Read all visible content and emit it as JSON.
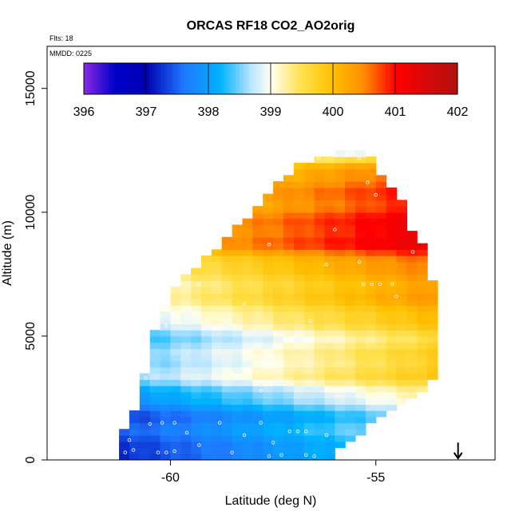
{
  "chart_data": {
    "type": "heatmap",
    "title": "ORCAS RF18 CO2_AO2orig",
    "corner_labels": [
      "Flts: 18",
      "MMDD: 0225"
    ],
    "xlabel": "Latitude (deg N)",
    "ylabel": "Altitude (m)",
    "xlim": [
      -63,
      -52.1
    ],
    "ylim": [
      0,
      16700
    ],
    "x_ticks": [
      -60,
      -55
    ],
    "x_tick_labels": [
      "-60",
      "-55"
    ],
    "y_ticks": [
      0,
      5000,
      10000,
      15000
    ],
    "y_tick_labels": [
      "0",
      "5000",
      "10000",
      "15000"
    ],
    "colorbar": {
      "min": 396,
      "max": 402,
      "ticks": [
        396,
        397,
        398,
        399,
        400,
        401,
        402
      ],
      "tick_labels": [
        "396",
        "397",
        "398",
        "399",
        "400",
        "401",
        "402"
      ],
      "color_stops": [
        {
          "v": 396.0,
          "c": "#8a2be2"
        },
        {
          "v": 396.5,
          "c": "#0000c8"
        },
        {
          "v": 397.0,
          "c": "#0000b0"
        },
        {
          "v": 397.6,
          "c": "#1e78ff"
        },
        {
          "v": 398.2,
          "c": "#00b4ff"
        },
        {
          "v": 398.7,
          "c": "#bfe6ff"
        },
        {
          "v": 399.0,
          "c": "#fffff0"
        },
        {
          "v": 399.5,
          "c": "#ffe14d"
        },
        {
          "v": 400.0,
          "c": "#ffc000"
        },
        {
          "v": 400.5,
          "c": "#ff8c00"
        },
        {
          "v": 401.0,
          "c": "#ff0000"
        },
        {
          "v": 402.0,
          "c": "#b01010"
        }
      ]
    },
    "grid_cell": {
      "dlat": 0.25,
      "dalt": 250
    },
    "envelope": [
      {
        "alt": 0,
        "lat_min": -61.2,
        "lat_max": -56.3
      },
      {
        "alt": 1000,
        "lat_min": -61.2,
        "lat_max": -55.5
      },
      {
        "alt": 1800,
        "lat_min": -60.9,
        "lat_max": -55.0
      },
      {
        "alt": 2800,
        "lat_min": -60.8,
        "lat_max": -54.0
      },
      {
        "alt": 3500,
        "lat_min": -60.6,
        "lat_max": -53.6
      },
      {
        "alt": 4500,
        "lat_min": -60.5,
        "lat_max": -53.6
      },
      {
        "alt": 5500,
        "lat_min": -60.3,
        "lat_max": -53.6
      },
      {
        "alt": 6700,
        "lat_min": -60.0,
        "lat_max": -53.5
      },
      {
        "alt": 7500,
        "lat_min": -59.6,
        "lat_max": -53.9
      },
      {
        "alt": 8500,
        "lat_min": -58.9,
        "lat_max": -53.9
      },
      {
        "alt": 9500,
        "lat_min": -58.3,
        "lat_max": -54.4
      },
      {
        "alt": 10500,
        "lat_min": -57.8,
        "lat_max": -54.5
      },
      {
        "alt": 11500,
        "lat_min": -57.2,
        "lat_max": -55.0
      },
      {
        "alt": 12000,
        "lat_min": -56.8,
        "lat_max": -55.0
      },
      {
        "alt": 12400,
        "lat_min": -56.0,
        "lat_max": -55.3
      }
    ],
    "profile": [
      {
        "alt": 0,
        "value": 397.6
      },
      {
        "alt": 1000,
        "value": 397.7
      },
      {
        "alt": 2000,
        "value": 398.1
      },
      {
        "alt": 2500,
        "value": 398.5
      },
      {
        "alt": 3500,
        "value": 398.8
      },
      {
        "alt": 4500,
        "value": 398.95
      },
      {
        "alt": 5500,
        "value": 399.05
      },
      {
        "alt": 6500,
        "value": 399.3
      },
      {
        "alt": 7000,
        "value": 399.6
      },
      {
        "alt": 8000,
        "value": 399.9
      },
      {
        "alt": 8700,
        "value": 400.25
      },
      {
        "alt": 9500,
        "value": 400.4
      },
      {
        "alt": 10300,
        "value": 400.4
      },
      {
        "alt": 11000,
        "value": 400.1
      },
      {
        "alt": 11800,
        "value": 399.6
      },
      {
        "alt": 12400,
        "value": 398.5
      }
    ],
    "lat_gradient_per_deg": 0.18,
    "lat_gradient_ref": -58.5,
    "sample_points": [
      {
        "lat": -61.1,
        "alt": 300
      },
      {
        "lat": -60.9,
        "alt": 400
      },
      {
        "lat": -60.3,
        "alt": 300
      },
      {
        "lat": -60.1,
        "alt": 300
      },
      {
        "lat": -59.9,
        "alt": 350
      },
      {
        "lat": -59.3,
        "alt": 600
      },
      {
        "lat": -58.5,
        "alt": 300
      },
      {
        "lat": -57.6,
        "alt": 150
      },
      {
        "lat": -57.3,
        "alt": 200
      },
      {
        "lat": -56.7,
        "alt": 200
      },
      {
        "lat": -56.5,
        "alt": 150
      },
      {
        "lat": -61.0,
        "alt": 800
      },
      {
        "lat": -60.5,
        "alt": 1450
      },
      {
        "lat": -60.2,
        "alt": 1500
      },
      {
        "lat": -59.9,
        "alt": 1500
      },
      {
        "lat": -59.6,
        "alt": 1100
      },
      {
        "lat": -58.8,
        "alt": 1500
      },
      {
        "lat": -58.2,
        "alt": 1000
      },
      {
        "lat": -57.8,
        "alt": 1500
      },
      {
        "lat": -57.5,
        "alt": 700
      },
      {
        "lat": -57.1,
        "alt": 1150
      },
      {
        "lat": -56.9,
        "alt": 1150
      },
      {
        "lat": -56.7,
        "alt": 1150
      },
      {
        "lat": -56.2,
        "alt": 1000
      },
      {
        "lat": -60.9,
        "alt": 2600
      },
      {
        "lat": -60.6,
        "alt": 3300
      },
      {
        "lat": -60.1,
        "alt": 5400
      },
      {
        "lat": -59.3,
        "alt": 7100
      },
      {
        "lat": -58.2,
        "alt": 6300
      },
      {
        "lat": -57.6,
        "alt": 8700
      },
      {
        "lat": -57.2,
        "alt": 11800
      },
      {
        "lat": -56.4,
        "alt": 12200
      },
      {
        "lat": -56.0,
        "alt": 12300
      },
      {
        "lat": -55.7,
        "alt": 12300
      },
      {
        "lat": -55.4,
        "alt": 12200
      },
      {
        "lat": -55.2,
        "alt": 11200
      },
      {
        "lat": -55.0,
        "alt": 10700
      },
      {
        "lat": -56.0,
        "alt": 9300
      },
      {
        "lat": -56.2,
        "alt": 7900
      },
      {
        "lat": -55.4,
        "alt": 8000
      },
      {
        "lat": -55.3,
        "alt": 7100
      },
      {
        "lat": -55.1,
        "alt": 7100
      },
      {
        "lat": -54.9,
        "alt": 7100
      },
      {
        "lat": -54.6,
        "alt": 7100
      },
      {
        "lat": -54.1,
        "alt": 8400
      },
      {
        "lat": -54.5,
        "alt": 6600
      },
      {
        "lat": -56.6,
        "alt": 5600
      },
      {
        "lat": -57.8,
        "alt": 2800
      }
    ],
    "marker": {
      "type": "arrow-down",
      "lat": -53.0,
      "alt_from": 700,
      "alt_to": 0
    }
  }
}
